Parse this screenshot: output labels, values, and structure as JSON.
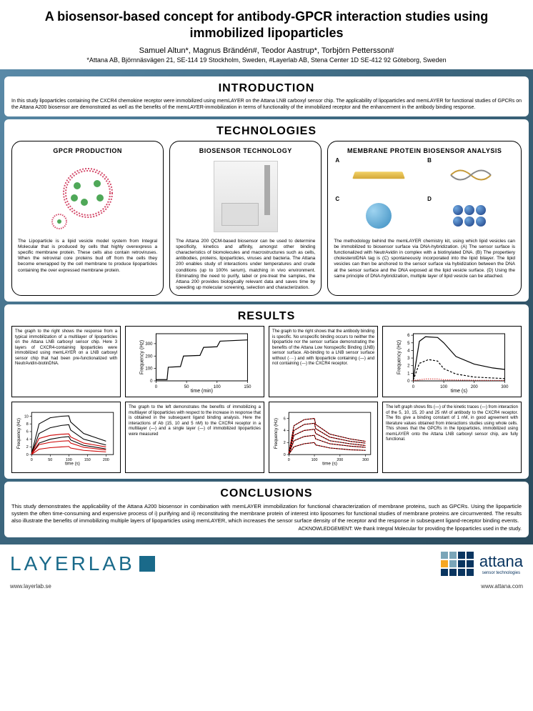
{
  "header": {
    "title": "A biosensor-based concept for antibody-GPCR interaction studies using immobilized lipoparticles",
    "authors": "Samuel Altun*, Magnus Brändén#, Teodor Aastrup*, Torbjörn Pettersson#",
    "affiliations": "*Attana AB, Björnnäsvägen 21, SE-114 19 Stockholm, Sweden, #Layerlab AB, Stena Center 1D SE-412 92 Göteborg, Sweden"
  },
  "sections": {
    "introduction": {
      "heading": "INTRODUCTION",
      "text": "In this study lipoparticles containing the CXCR4 chemokine receptor were immobilized using memLAYER on the Attana LNB carboxyl sensor chip. The applicability of lipoparticles and memLAYER for functional studies of GPCRs on the Attana A200 biosensor are demonstrated as well as the benefits of the memLAYER-immobilization in terms of functionality of the immobilized receptor and the enhancement in the antibody binding response."
    },
    "technologies": {
      "heading": "TECHNOLOGIES",
      "gpcr": {
        "heading": "GPCR PRODUCTION",
        "desc": "The Lipoparticle is a lipid vesicle model system from Integral Molecular that is produced by cells that highly overexpress a specific membrane protein. These cells also contain retroviruses. When the retroviral core proteins bud off from the cells they become enwrapped by the cell membrane to produce lipoparticles containing the over expressed membrane protein.",
        "ring_color": "#d44a6a",
        "dot_color": "#4fa858"
      },
      "biosensor": {
        "heading": "BIOSENSOR TECHNOLOGY",
        "desc": "The Attana 200 QCM-based biosensor can be used to determine specificity, kinetics and affinity, amongst other binding characteristics of biomolecules and macrostructures such as cells, antibodies, proteins, lipoparticles, viruses and bacteria. The Attana 200 enables study of interactions under temperatures and crude conditions (up to 100% serum), matching in vivo environment. Eliminating the need to purify, label or pre-treat the samples, the Attana 200 provides biologically relevant data and saves time by speeding up molecular screening, selection and characterization."
      },
      "mpba": {
        "heading": "MEMBRANE PROTEIN BIOSENSOR ANALYSIS",
        "labels": [
          "A",
          "B",
          "C",
          "D"
        ],
        "desc": "The methodology behind the memLAYER chemistry kit, using which lipid vesicles can be immobilized to biosensor surface via DNA-hybridization. (A) The sensor surface is functionalized with NeutrAvidin in complex with a biotinylated DNA. (B) The propertiery cholesterolDNA tag is (C) spontaneously incorporated into the lipid bilayer. The lipid vesicles can then be anchored to the sensor surface via hybidization between the DNA at the sensor surface and the DNA exposed at the lipid vesicle surface. (D) Using the same principle of DNA-hybridization, multiple layer of lipid vesicle can be attached."
      }
    },
    "results": {
      "heading": "RESULTS",
      "text1": "The graph to the right shows the response from a typical immobilization of a multilayer of lipoparticles on the Attana LNB carboxyl sensor chip. Here 3 layers of CXCR4-containing lipoparticles were immobilized using memLAYER on a LNB carboxyl sensor chip that had been pre-functionalized with NeutrAvidin-biotinDNA.",
      "text2": "The graph to the right shows that the antibody binding is specific. No unspecific binding occurs to neither the lipoparticle nor the sensor surface demonstrating the benefits of the Attana Low Nonspecific Binding (LNB) sensor surface. Ab-binding to a LNB sensor surface without (····) and with lipoparticle containing (—) and not containing (---) the CXCR4 receptor.",
      "text3": "The graph to the left demonstrates the benefits of immobilizing a multilayer of lipoparticles with respect to the increase in response that is obtained in the subsequent ligand binding analysis. Here the interactions of Ab (15, 10 and 5 nM) to the CXCR4 receptor in a multilayer (—) and a single layer (—) of immobilized lipoparticles were measured",
      "text4": "The left graph shows fits (—) of the kinetic traces (—) from interaction of the 5, 10, 15, 20 and 25 nM of antibody to the CXCR4 receptor. The fits give a binding constant of 1 nM, in good agreement with literature values obtained from interactions studies using whole cells. This shows that the GPCRs in the lipoparticles, immobilized using memLAYER onto the Attana LNB carboxyl sensor chip, are fully functional.",
      "chart1": {
        "xlabel": "time (min)",
        "ylabel": "Frequency (Hz)",
        "xlim": [
          0,
          150
        ],
        "ylim": [
          0,
          380
        ],
        "xticks": [
          0,
          50,
          100,
          150
        ],
        "yticks": [
          0,
          100,
          200,
          300
        ],
        "line_color": "#000",
        "points": [
          [
            0,
            10
          ],
          [
            18,
            10
          ],
          [
            20,
            110
          ],
          [
            40,
            115
          ],
          [
            45,
            200
          ],
          [
            72,
            205
          ],
          [
            78,
            270
          ],
          [
            100,
            275
          ],
          [
            105,
            320
          ],
          [
            150,
            330
          ]
        ]
      },
      "chart2": {
        "xlabel": "time (s)",
        "ylabel": "Frequency (Hz)",
        "xlim": [
          0,
          300
        ],
        "ylim": [
          0,
          6.2
        ],
        "xticks": [
          0,
          100,
          200,
          300
        ],
        "yticks": [
          0,
          1,
          2,
          3,
          4,
          5,
          6
        ],
        "solid_color": "#000",
        "dash_color": "#000",
        "dot_color": "#c00",
        "solid": [
          [
            0,
            0.2
          ],
          [
            20,
            5.2
          ],
          [
            40,
            5.8
          ],
          [
            80,
            5.7
          ],
          [
            100,
            5.0
          ],
          [
            140,
            3.2
          ],
          [
            200,
            2.2
          ],
          [
            260,
            1.7
          ],
          [
            300,
            1.5
          ]
        ],
        "dash": [
          [
            0,
            0.1
          ],
          [
            20,
            2.3
          ],
          [
            50,
            2.8
          ],
          [
            80,
            2.6
          ],
          [
            100,
            1.6
          ],
          [
            140,
            0.9
          ],
          [
            200,
            0.5
          ],
          [
            300,
            0.3
          ]
        ],
        "dot": [
          [
            0,
            0.05
          ],
          [
            40,
            0.25
          ],
          [
            80,
            0.25
          ],
          [
            100,
            0.15
          ],
          [
            200,
            0.08
          ],
          [
            300,
            0.05
          ]
        ]
      },
      "chart3": {
        "xlabel": "time (s)",
        "ylabel": "Frequency (Hz)",
        "xlim": [
          0,
          220
        ],
        "ylim": [
          0,
          11
        ],
        "xticks": [
          0,
          50,
          100,
          150,
          200
        ],
        "yticks": [
          0,
          2,
          4,
          6,
          8,
          10
        ],
        "colors": [
          "#000",
          "#000",
          "#000",
          "#c00",
          "#c00",
          "#c00"
        ],
        "series": [
          [
            [
              0,
              0.3
            ],
            [
              20,
              8
            ],
            [
              50,
              9.6
            ],
            [
              80,
              10
            ],
            [
              100,
              10.1
            ],
            [
              105,
              8.5
            ],
            [
              140,
              5.5
            ],
            [
              200,
              3.5
            ]
          ],
          [
            [
              0,
              0.2
            ],
            [
              20,
              5.5
            ],
            [
              50,
              7
            ],
            [
              80,
              7.6
            ],
            [
              100,
              7.8
            ],
            [
              105,
              6.4
            ],
            [
              140,
              4
            ],
            [
              200,
              2.5
            ]
          ],
          [
            [
              0,
              0.1
            ],
            [
              20,
              3
            ],
            [
              50,
              4
            ],
            [
              80,
              4.5
            ],
            [
              100,
              4.7
            ],
            [
              105,
              3.8
            ],
            [
              140,
              2.4
            ],
            [
              200,
              1.5
            ]
          ],
          [
            [
              0,
              0.2
            ],
            [
              20,
              4.2
            ],
            [
              50,
              5
            ],
            [
              80,
              5.3
            ],
            [
              100,
              5.4
            ],
            [
              105,
              4.6
            ],
            [
              140,
              3
            ],
            [
              200,
              2
            ]
          ],
          [
            [
              0,
              0.1
            ],
            [
              20,
              2.6
            ],
            [
              50,
              3.2
            ],
            [
              80,
              3.5
            ],
            [
              100,
              3.6
            ],
            [
              105,
              3
            ],
            [
              140,
              1.9
            ],
            [
              200,
              1.2
            ]
          ],
          [
            [
              0,
              0.05
            ],
            [
              20,
              1.4
            ],
            [
              50,
              1.8
            ],
            [
              80,
              2
            ],
            [
              100,
              2.1
            ],
            [
              105,
              1.7
            ],
            [
              140,
              1.1
            ],
            [
              200,
              0.7
            ]
          ]
        ]
      },
      "chart4": {
        "xlabel": "time (s)",
        "ylabel": "Frequency (Hz)",
        "xlim": [
          0,
          320
        ],
        "ylim": [
          0,
          7
        ],
        "xticks": [
          0,
          100,
          200,
          300
        ],
        "yticks": [
          0,
          2,
          4,
          6
        ],
        "data_color": "#c00",
        "fit_color": "#000",
        "series": [
          [
            [
              0,
              0.2
            ],
            [
              20,
              4.8
            ],
            [
              60,
              5.8
            ],
            [
              100,
              6.0
            ],
            [
              105,
              5.0
            ],
            [
              160,
              3.4
            ],
            [
              240,
              2.6
            ],
            [
              300,
              2.2
            ]
          ],
          [
            [
              0,
              0.15
            ],
            [
              20,
              4.0
            ],
            [
              60,
              5.0
            ],
            [
              100,
              5.2
            ],
            [
              105,
              4.3
            ],
            [
              160,
              2.9
            ],
            [
              240,
              2.2
            ],
            [
              300,
              1.9
            ]
          ],
          [
            [
              0,
              0.12
            ],
            [
              20,
              3.2
            ],
            [
              60,
              4.0
            ],
            [
              100,
              4.2
            ],
            [
              105,
              3.5
            ],
            [
              160,
              2.3
            ],
            [
              240,
              1.8
            ],
            [
              300,
              1.5
            ]
          ],
          [
            [
              0,
              0.1
            ],
            [
              20,
              2.3
            ],
            [
              60,
              3.0
            ],
            [
              100,
              3.2
            ],
            [
              105,
              2.6
            ],
            [
              160,
              1.8
            ],
            [
              240,
              1.4
            ],
            [
              300,
              1.2
            ]
          ],
          [
            [
              0,
              0.05
            ],
            [
              20,
              1.3
            ],
            [
              60,
              1.8
            ],
            [
              100,
              2.0
            ],
            [
              105,
              1.6
            ],
            [
              160,
              1.1
            ],
            [
              240,
              0.8
            ],
            [
              300,
              0.7
            ]
          ]
        ]
      }
    },
    "conclusions": {
      "heading": "CONCLUSIONS",
      "text": "This study demonstrates the applicability of the Attana A200 biosensor in combination with memLAYER immobilization for functional characterization of membrane proteins, such as GPCRs. Using the lipoparticle system the often time-consuming and expensive process of i) purifying and ii) reconstituting the membrane protein of interest into liposomes for functional studies of membrane proteins are circumvented. The results also illustrate the benefits of immobilizing multiple layers of lipoparticles using memLAYER, which increases the sensor surface density of the receptor and the response in subsequent ligand-receptor binding events.",
      "ack": "ACKNOWLEDGEMENT: We thank Integral Molecular for providing the lipoparticles used in the study."
    }
  },
  "footer": {
    "layerlab": "LAYERLAB",
    "attana": "attana",
    "attana_sub": "sensor technologies",
    "site_left": "www.layerlab.se",
    "site_right": "www.attana.com",
    "att_colors": [
      "#7aa5b8",
      "#7aa5b8",
      "#0a3560",
      "#0a3560",
      "#f5a623",
      "#7aa5b8",
      "#0a3560",
      "#0a3560",
      "#0a3560",
      "#0a3560",
      "#0a3560",
      "#0a3560"
    ]
  }
}
